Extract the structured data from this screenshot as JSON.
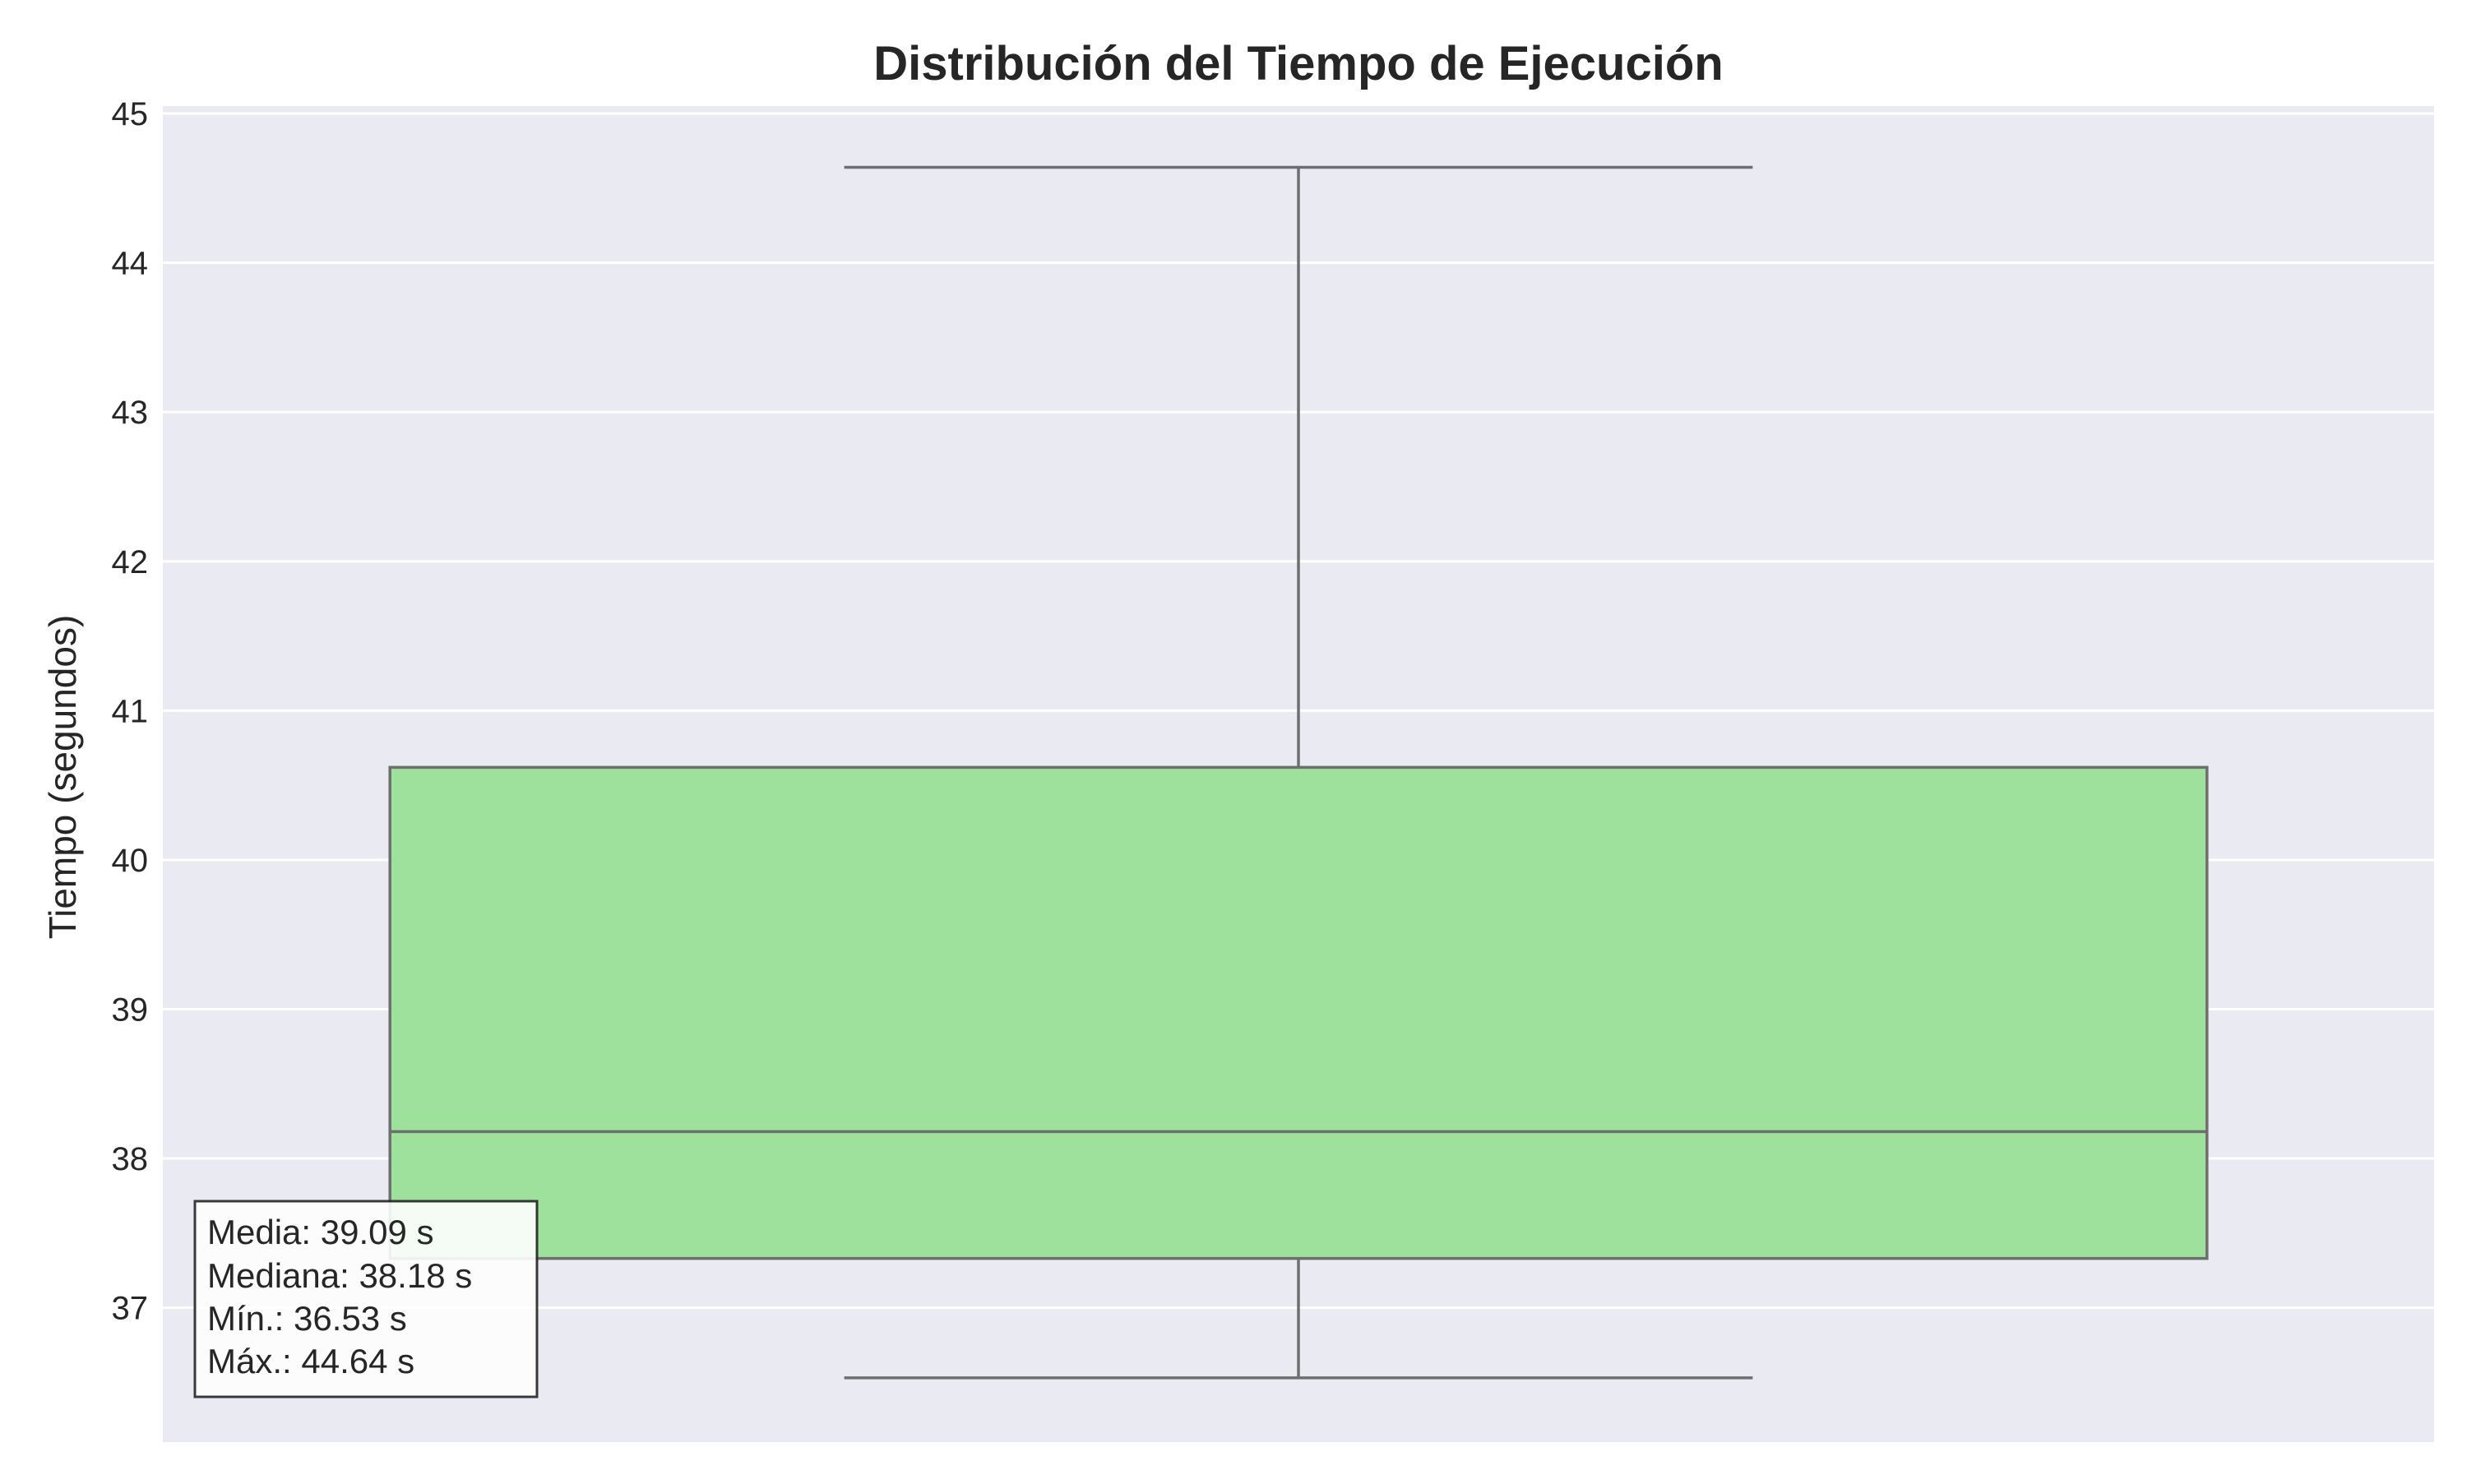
{
  "chart_data": {
    "type": "box",
    "title": "Distribución del Tiempo de Ejecución",
    "xlabel": "",
    "ylabel": "Tiempo (segundos)",
    "ylim": [
      36.1,
      45.05
    ],
    "yticks": [
      37,
      38,
      39,
      40,
      41,
      42,
      43,
      44,
      45
    ],
    "grid": true,
    "box": {
      "min": 36.53,
      "q1": 37.33,
      "median": 38.18,
      "q3": 40.62,
      "max": 44.64,
      "fill_color": "#9de19d",
      "line_color": "#6e6e6e"
    },
    "stats_lines": [
      "Media: 39.09 s",
      "Mediana: 38.18 s",
      "Mín.: 36.53 s",
      "Máx.: 44.64 s"
    ],
    "colors": {
      "plot_background": "#eaeaf2",
      "grid": "#ffffff",
      "text": "#262626",
      "stats_box_fill": "#ffffff",
      "stats_box_border": "#262626"
    }
  }
}
